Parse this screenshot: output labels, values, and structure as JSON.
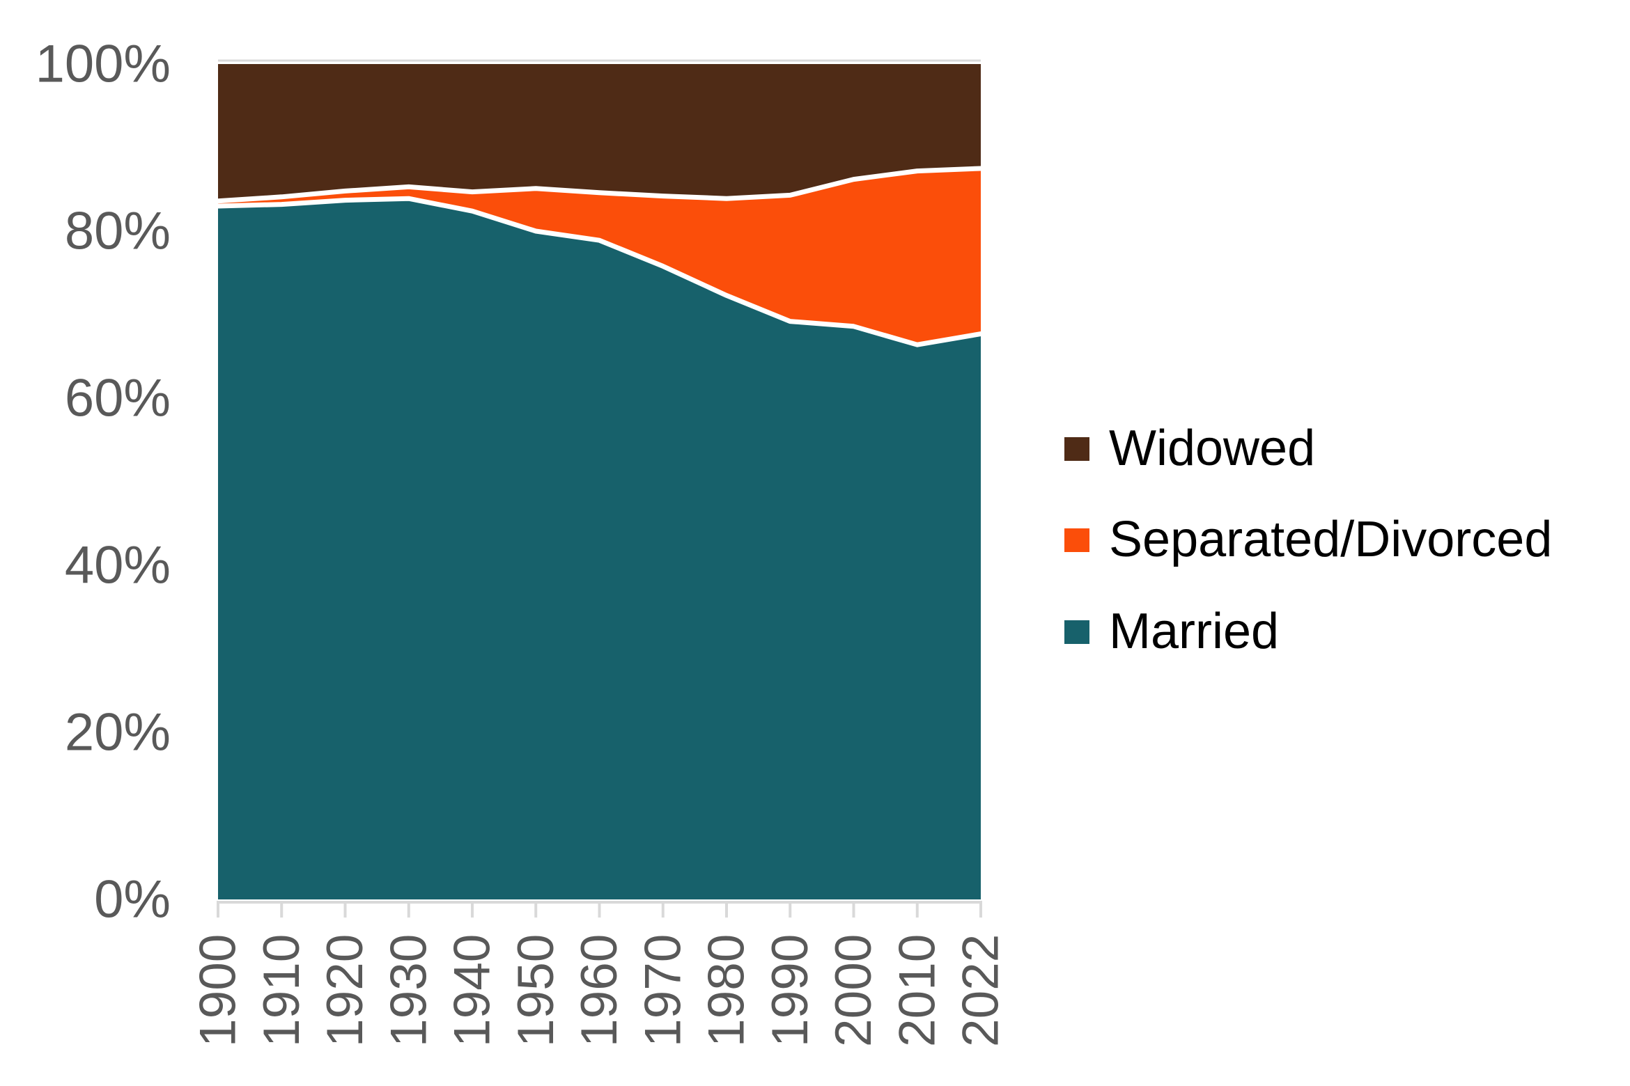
{
  "chart_data": {
    "type": "area",
    "stacked": true,
    "percent_stacked": true,
    "title": "",
    "xlabel": "",
    "ylabel": "",
    "categories": [
      "1900",
      "1910",
      "1920",
      "1930",
      "1940",
      "1950",
      "1960",
      "1970",
      "1980",
      "1990",
      "2000",
      "2010",
      "2022"
    ],
    "series": [
      {
        "name": "Married",
        "color": "#17616B",
        "values": [
          83.0,
          83.2,
          83.7,
          83.9,
          82.4,
          80.0,
          78.9,
          75.8,
          72.3,
          69.2,
          68.6,
          66.4,
          67.7
        ]
      },
      {
        "name": "Separated/Divorced",
        "color": "#FB4E0A",
        "values": [
          0.6,
          0.9,
          1.1,
          1.4,
          2.3,
          5.1,
          5.7,
          8.4,
          11.6,
          15.1,
          17.6,
          20.8,
          19.8
        ]
      },
      {
        "name": "Widowed",
        "color": "#4F2B16",
        "values": [
          16.4,
          15.9,
          15.2,
          14.7,
          15.3,
          14.9,
          15.4,
          15.8,
          16.1,
          15.7,
          13.8,
          12.8,
          12.5
        ]
      }
    ],
    "y_axis": {
      "min": 0,
      "max": 100,
      "ticks": [
        {
          "label": "0%",
          "value": 0
        },
        {
          "label": "20%",
          "value": 20
        },
        {
          "label": "40%",
          "value": 40
        },
        {
          "label": "60%",
          "value": 60
        },
        {
          "label": "80%",
          "value": 80
        },
        {
          "label": "100%",
          "value": 100
        }
      ]
    },
    "x_axis": {
      "tick_labels_rotated": true
    },
    "grid": "top-gridline-only",
    "legend_position": "right",
    "series_outline_color": "#FFFFFF"
  },
  "legend": {
    "items": [
      {
        "label": "Widowed",
        "color": "#4F2B16"
      },
      {
        "label": "Separated/Divorced",
        "color": "#FB4E0A"
      },
      {
        "label": "Married",
        "color": "#17616B"
      }
    ]
  },
  "colors": {
    "axis_text": "#595959",
    "axis_line": "#D9D9D9",
    "background": "#FFFFFF"
  }
}
